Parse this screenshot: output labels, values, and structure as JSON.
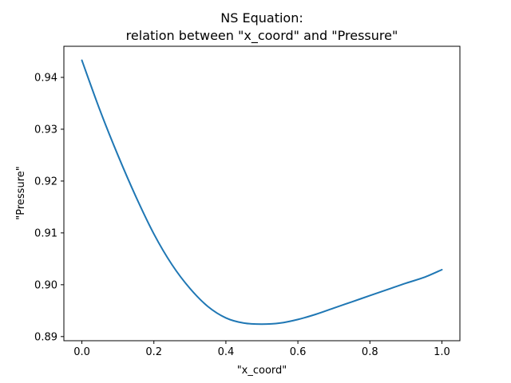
{
  "chart_data": {
    "type": "line",
    "title": [
      "NS Equation:",
      "relation between  \"x_coord\" and  \"Pressure\""
    ],
    "xlabel": "\"x_coord\"",
    "ylabel": "\"Pressure\"",
    "xlim": [
      -0.05,
      1.05
    ],
    "ylim": [
      0.8892,
      0.946
    ],
    "xticks": [
      0.0,
      0.2,
      0.4,
      0.6,
      0.8,
      1.0
    ],
    "xtick_labels": [
      "0.0",
      "0.2",
      "0.4",
      "0.6",
      "0.8",
      "1.0"
    ],
    "yticks": [
      0.89,
      0.9,
      0.91,
      0.92,
      0.93,
      0.94
    ],
    "ytick_labels": [
      "0.89",
      "0.90",
      "0.91",
      "0.92",
      "0.93",
      "0.94"
    ],
    "grid": false,
    "series": [
      {
        "color": "#1f77b4",
        "x": [
          0.0,
          0.05,
          0.1,
          0.15,
          0.2,
          0.25,
          0.3,
          0.35,
          0.4,
          0.45,
          0.5,
          0.55,
          0.6,
          0.65,
          0.7,
          0.75,
          0.8,
          0.85,
          0.9,
          0.95,
          1.0
        ],
        "y": [
          0.9433,
          0.9337,
          0.925,
          0.917,
          0.9098,
          0.9039,
          0.8993,
          0.8958,
          0.8936,
          0.8926,
          0.8924,
          0.8926,
          0.8933,
          0.8943,
          0.8955,
          0.8967,
          0.8979,
          0.8991,
          0.9003,
          0.9014,
          0.9029
        ]
      }
    ]
  }
}
